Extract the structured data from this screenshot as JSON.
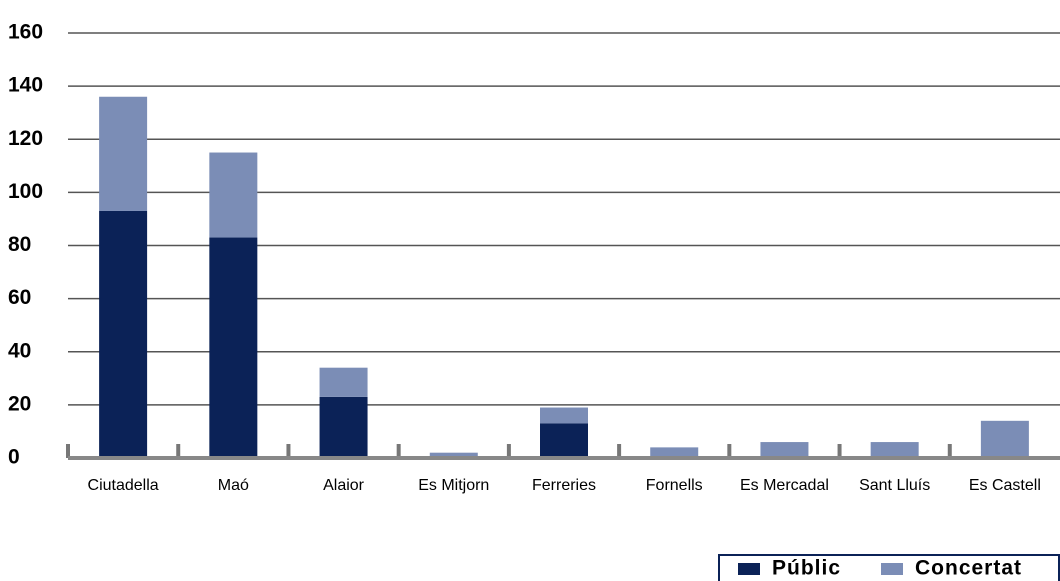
{
  "chart_data": {
    "type": "bar",
    "stacked": true,
    "categories": [
      "Ciutadella",
      "Maó",
      "Alaior",
      "Es Mitjorn",
      "Ferreries",
      "Fornells",
      "Es Mercadal",
      "Sant Lluís",
      "Es Castell"
    ],
    "series": [
      {
        "name": "Públic",
        "color": "#0b2257",
        "values": [
          93,
          83,
          23,
          0,
          13,
          0,
          0,
          0,
          0
        ]
      },
      {
        "name": "Concertat",
        "color": "#7b8db6",
        "values": [
          43,
          32,
          11,
          2,
          6,
          4,
          6,
          6,
          14
        ]
      }
    ],
    "ylim": [
      0,
      160
    ],
    "yticks": [
      0,
      20,
      40,
      60,
      80,
      100,
      120,
      140,
      160
    ],
    "grid": true,
    "legend": "bottom-right"
  }
}
